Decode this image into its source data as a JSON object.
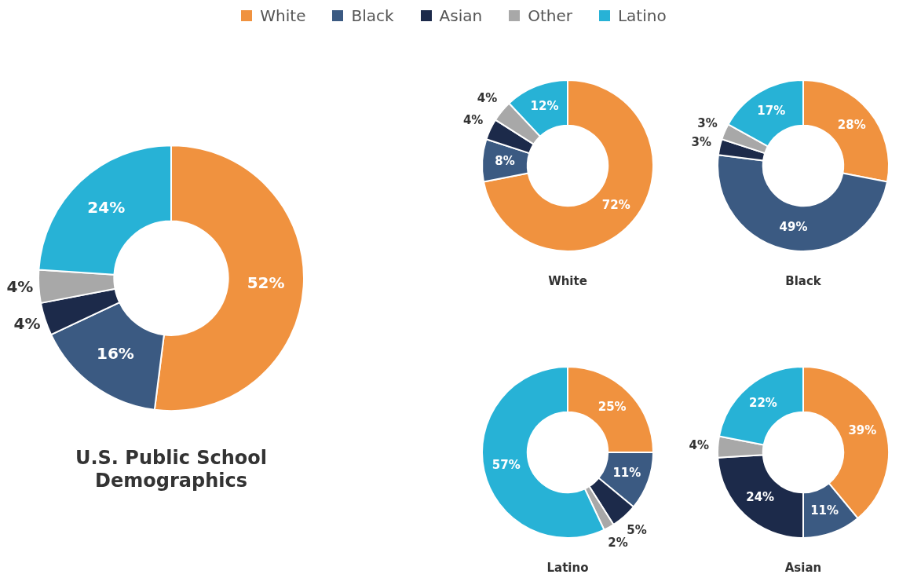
{
  "chart_data": [
    {
      "type": "donut",
      "title": "U.S. Public School Demographics",
      "categories": [
        "White",
        "Black",
        "Asian",
        "Other",
        "Latino"
      ],
      "values": [
        52,
        16,
        4,
        4,
        24
      ],
      "value_labels": [
        "52%",
        "16%",
        "4%",
        "4%",
        "24%"
      ],
      "colors": [
        "#f0923f",
        "#3b5a82",
        "#1c2a4a",
        "#a8a8a8",
        "#27b2d6"
      ],
      "legend": "top"
    },
    {
      "type": "donut",
      "title": "White",
      "categories": [
        null,
        null,
        null,
        null,
        null
      ],
      "values": [
        72,
        8,
        4,
        4,
        12
      ],
      "value_labels": [
        "72%",
        "8%",
        "4%",
        "4%",
        "12%"
      ],
      "colors": [
        "#f0923f",
        "#3b5a82",
        "#1c2a4a",
        "#a8a8a8",
        "#27b2d6"
      ]
    },
    {
      "type": "donut",
      "title": "Black",
      "categories": [
        null,
        null,
        null,
        null,
        null
      ],
      "values": [
        28,
        49,
        3,
        3,
        17
      ],
      "value_labels": [
        "28%",
        "49%",
        "3%",
        "3%",
        "17%"
      ],
      "colors": [
        "#f0923f",
        "#3b5a82",
        "#1c2a4a",
        "#a8a8a8",
        "#27b2d6"
      ]
    },
    {
      "type": "donut",
      "title": "Latino",
      "categories": [
        null,
        null,
        null,
        null,
        null
      ],
      "values": [
        25,
        11,
        5,
        2,
        57
      ],
      "value_labels": [
        "25%",
        "11%",
        "5%",
        "2%",
        "57%"
      ],
      "colors": [
        "#f0923f",
        "#3b5a82",
        "#1c2a4a",
        "#a8a8a8",
        "#27b2d6"
      ]
    },
    {
      "type": "donut",
      "title": "Asian",
      "categories": [
        null,
        null,
        null,
        null,
        null
      ],
      "values": [
        39,
        11,
        24,
        4,
        22
      ],
      "value_labels": [
        "39%",
        "11%",
        "24%",
        "4%",
        "22%"
      ],
      "colors": [
        "#f0923f",
        "#3b5a82",
        "#1c2a4a",
        "#a8a8a8",
        "#27b2d6"
      ]
    }
  ]
}
